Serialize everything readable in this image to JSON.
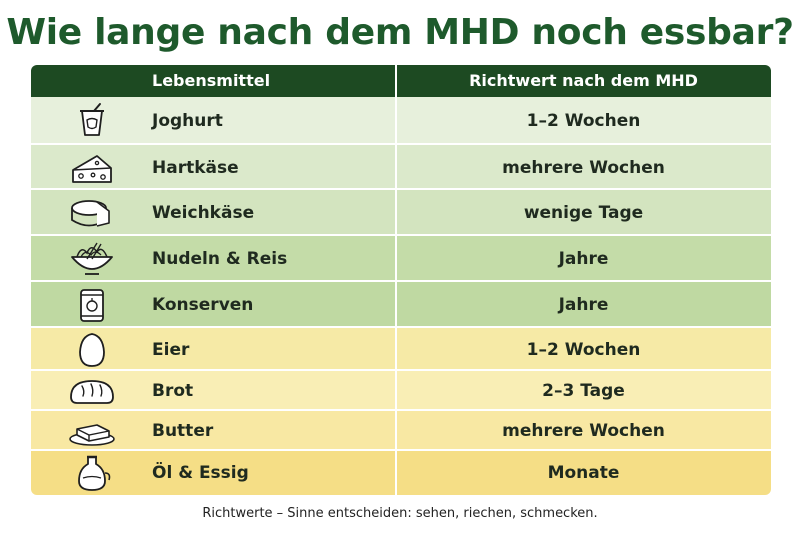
{
  "title": "Wie lange nach dem MHD noch essbar?",
  "table": {
    "headers": [
      "Lebensmittel",
      "Richtwert nach dem MHD"
    ],
    "rows": [
      {
        "icon": "yogurt-cup-icon",
        "name": "Joghurt",
        "value": "1–2 Wochen",
        "color": "#e7f0dc"
      },
      {
        "icon": "cheese-wedge-icon",
        "name": "Hartkäse",
        "value": "mehrere Wochen",
        "color": "#dbe9cb"
      },
      {
        "icon": "cheese-wheel-icon",
        "name": "Weichkäse",
        "value": "wenige Tage",
        "color": "#d3e4bf"
      },
      {
        "icon": "noodle-bowl-icon",
        "name": "Nudeln & Reis",
        "value": "Jahre",
        "color": "#c4dca8"
      },
      {
        "icon": "tin-can-icon",
        "name": "Konserven",
        "value": "Jahre",
        "color": "#bfd9a2"
      },
      {
        "icon": "egg-icon",
        "name": "Eier",
        "value": "1–2 Wochen",
        "color": "#f6eaa6"
      },
      {
        "icon": "bread-icon",
        "name": "Brot",
        "value": "2–3 Tage",
        "color": "#f9eeb5"
      },
      {
        "icon": "butter-icon",
        "name": "Butter",
        "value": "mehrere Wochen",
        "color": "#f8e8a3"
      },
      {
        "icon": "oil-bottle-icon",
        "name": "Öl & Essig",
        "value": "Monate",
        "color": "#f5de86"
      }
    ]
  },
  "footnote": "Richtwerte – Sinne entscheiden: sehen, riechen, schmecken."
}
